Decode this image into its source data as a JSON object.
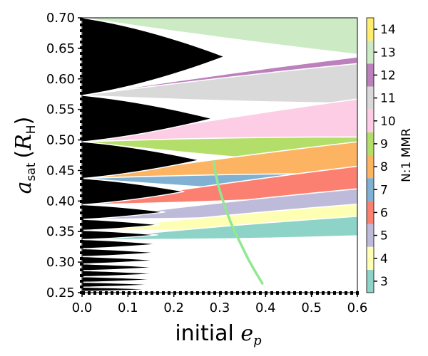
{
  "chart_data": {
    "type": "heatmap",
    "title": "",
    "xlabel": "initial e_p",
    "xlabel_text": "initial ",
    "xlabel_math": "e",
    "xlabel_math_sub": "p",
    "ylabel_math": "a",
    "ylabel_math_sub": "sat",
    "ylabel_unit_open": "(",
    "ylabel_unit": "R",
    "ylabel_unit_sub": "H",
    "ylabel_unit_close": ")",
    "xlim": [
      0.0,
      0.6
    ],
    "ylim": [
      0.25,
      0.7
    ],
    "x_ticks": [
      "0.0",
      "0.1",
      "0.2",
      "0.3",
      "0.4",
      "0.5",
      "0.6"
    ],
    "y_ticks": [
      "0.25",
      "0.30",
      "0.35",
      "0.40",
      "0.45",
      "0.50",
      "0.55",
      "0.60",
      "0.65",
      "0.70"
    ],
    "colorbar": {
      "label": "N:1 MMR",
      "ticks": [
        "3",
        "4",
        "5",
        "6",
        "7",
        "8",
        "9",
        "10",
        "11",
        "12",
        "13",
        "14"
      ],
      "colors": [
        "#8dd3c7",
        "#ffffb3",
        "#bebada",
        "#fb8072",
        "#80b1d3",
        "#fdb462",
        "#b3de69",
        "#fccde5",
        "#d9d9d9",
        "#bc80bd",
        "#ccebc5",
        "#ffed6f"
      ]
    },
    "unstable_region_color": "#000000",
    "bands": [
      {
        "mmr": 13,
        "y_at_e0": 0.7,
        "upper_edge_at_e06": 0.7,
        "lower_edge_at_e06": 0.64
      },
      {
        "mmr": 12,
        "y_at_e0": 0.573,
        "upper_edge_at_e06": 0.636,
        "lower_edge_at_e06": 0.625
      },
      {
        "mmr": 11,
        "y_at_e0": 0.573,
        "upper_edge_at_e06": 0.625,
        "lower_edge_at_e06": 0.56
      },
      {
        "mmr": 10,
        "y_at_e0": 0.497,
        "upper_edge_at_e06": 0.567,
        "lower_edge_at_e06": 0.505
      },
      {
        "mmr": 9,
        "y_at_e0": 0.497,
        "upper_edge_at_e06": 0.505,
        "lower_edge_at_e06": 0.456
      },
      {
        "mmr": 8,
        "y_at_e0": 0.437,
        "upper_edge_at_e06": 0.497,
        "lower_edge_at_e06": 0.445
      },
      {
        "mmr": 7,
        "y_at_e0": 0.437,
        "upper_edge_at_e06": 0.445,
        "lower_edge_at_e06": 0.41
      },
      {
        "mmr": 6,
        "y_at_e0": 0.394,
        "upper_edge_at_e06": 0.457,
        "lower_edge_at_e06": 0.41
      },
      {
        "mmr": 5,
        "y_at_e0": 0.37,
        "upper_edge_at_e06": 0.42,
        "lower_edge_at_e06": 0.38
      },
      {
        "mmr": 4,
        "y_at_e0": 0.352,
        "upper_edge_at_e06": 0.395,
        "lower_edge_at_e06": 0.36
      },
      {
        "mmr": 3,
        "y_at_e0": 0.337,
        "upper_edge_at_e06": 0.375,
        "lower_edge_at_e06": 0.343
      }
    ],
    "green_curve": {
      "x": [
        0.287,
        0.291,
        0.297,
        0.305,
        0.314,
        0.324,
        0.336,
        0.349,
        0.362,
        0.377,
        0.393
      ],
      "y": [
        0.465,
        0.445,
        0.425,
        0.405,
        0.385,
        0.365,
        0.345,
        0.325,
        0.305,
        0.285,
        0.265
      ]
    }
  }
}
